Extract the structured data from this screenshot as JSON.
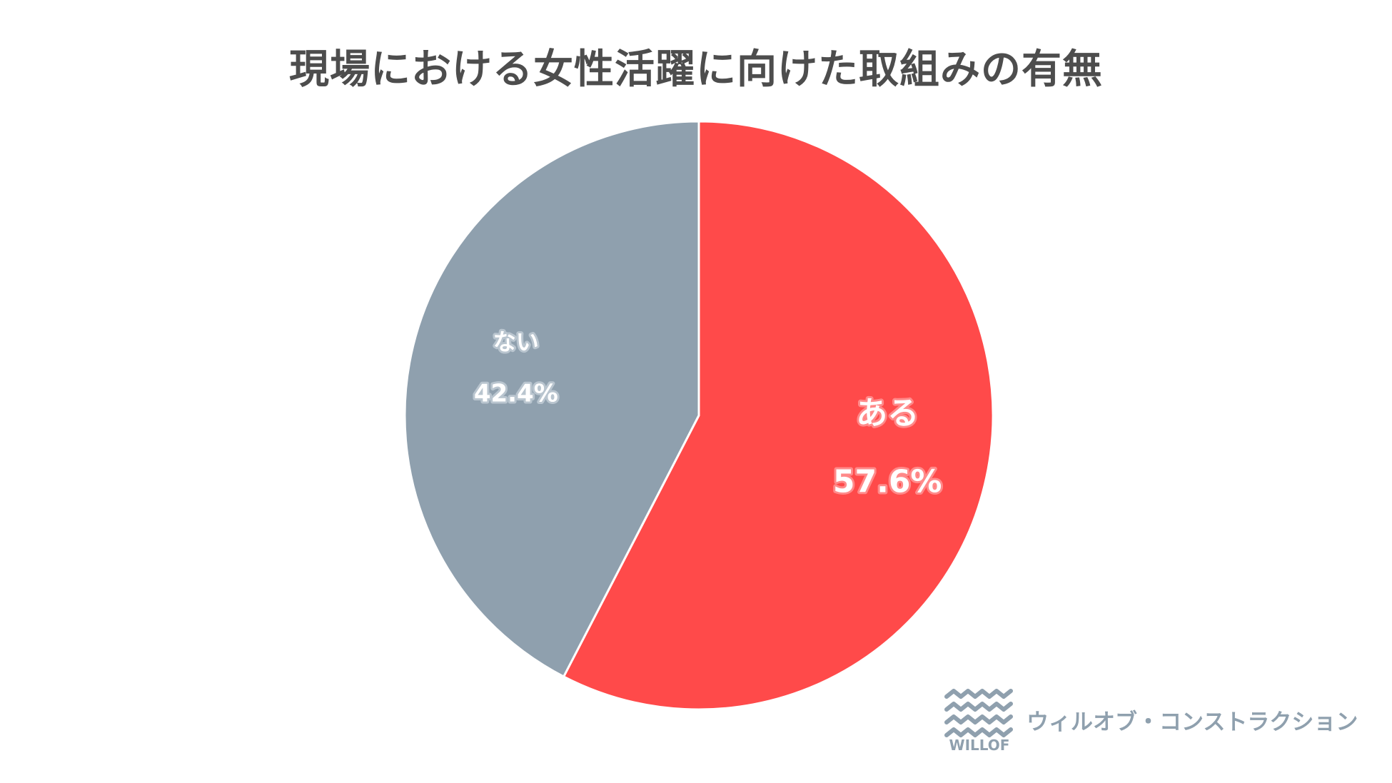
{
  "chart_data": {
    "type": "pie",
    "title": "現場における女性活躍に向けた取組みの有無",
    "slices": [
      {
        "label": "ある",
        "value": 57.6,
        "value_label": "57.6%",
        "color": "#ff4a4a"
      },
      {
        "label": "ない",
        "value": 42.4,
        "value_label": "42.4%",
        "color": "#8fa0ae"
      }
    ],
    "start_angle": "12 o'clock",
    "direction": "clockwise"
  },
  "branding": {
    "logo_text": "WILLOF",
    "logo_icon": "wave-lines-icon",
    "company_name": "ウィルオブ・コンストラクション",
    "color": "#8fa0ae"
  }
}
